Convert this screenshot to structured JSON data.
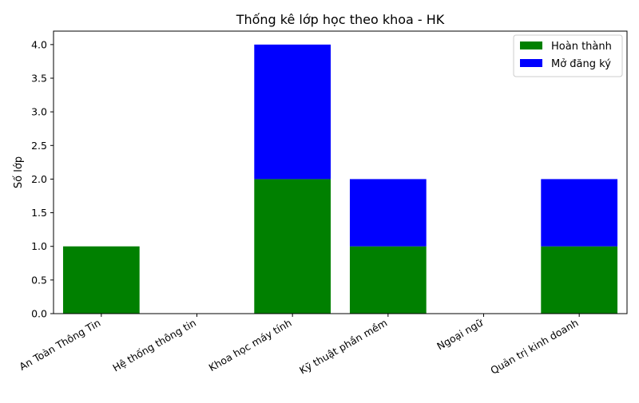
{
  "chart_data": {
    "type": "bar",
    "stacked": true,
    "title": "Thống kê lớp học theo khoa - HK",
    "xlabel": "",
    "ylabel": "Số lớp",
    "categories": [
      "An Toàn Thông Tin",
      "Hệ thống thông tin",
      "Khoa học máy tính",
      "Kỹ thuật phần mềm",
      "Ngoại ngữ",
      "Quản trị kinh doanh"
    ],
    "series": [
      {
        "name": "Hoàn thành",
        "color": "#008000",
        "values": [
          1,
          0,
          2,
          1,
          0,
          1
        ]
      },
      {
        "name": "Mở đăng ký",
        "color": "#0000ff",
        "values": [
          0,
          0,
          2,
          1,
          0,
          1
        ]
      }
    ],
    "ylim": [
      0,
      4.2
    ],
    "yticks": [
      "0.0",
      "0.5",
      "1.0",
      "1.5",
      "2.0",
      "2.5",
      "3.0",
      "3.5",
      "4.0"
    ],
    "grid": false,
    "legend_position": "top-right"
  }
}
